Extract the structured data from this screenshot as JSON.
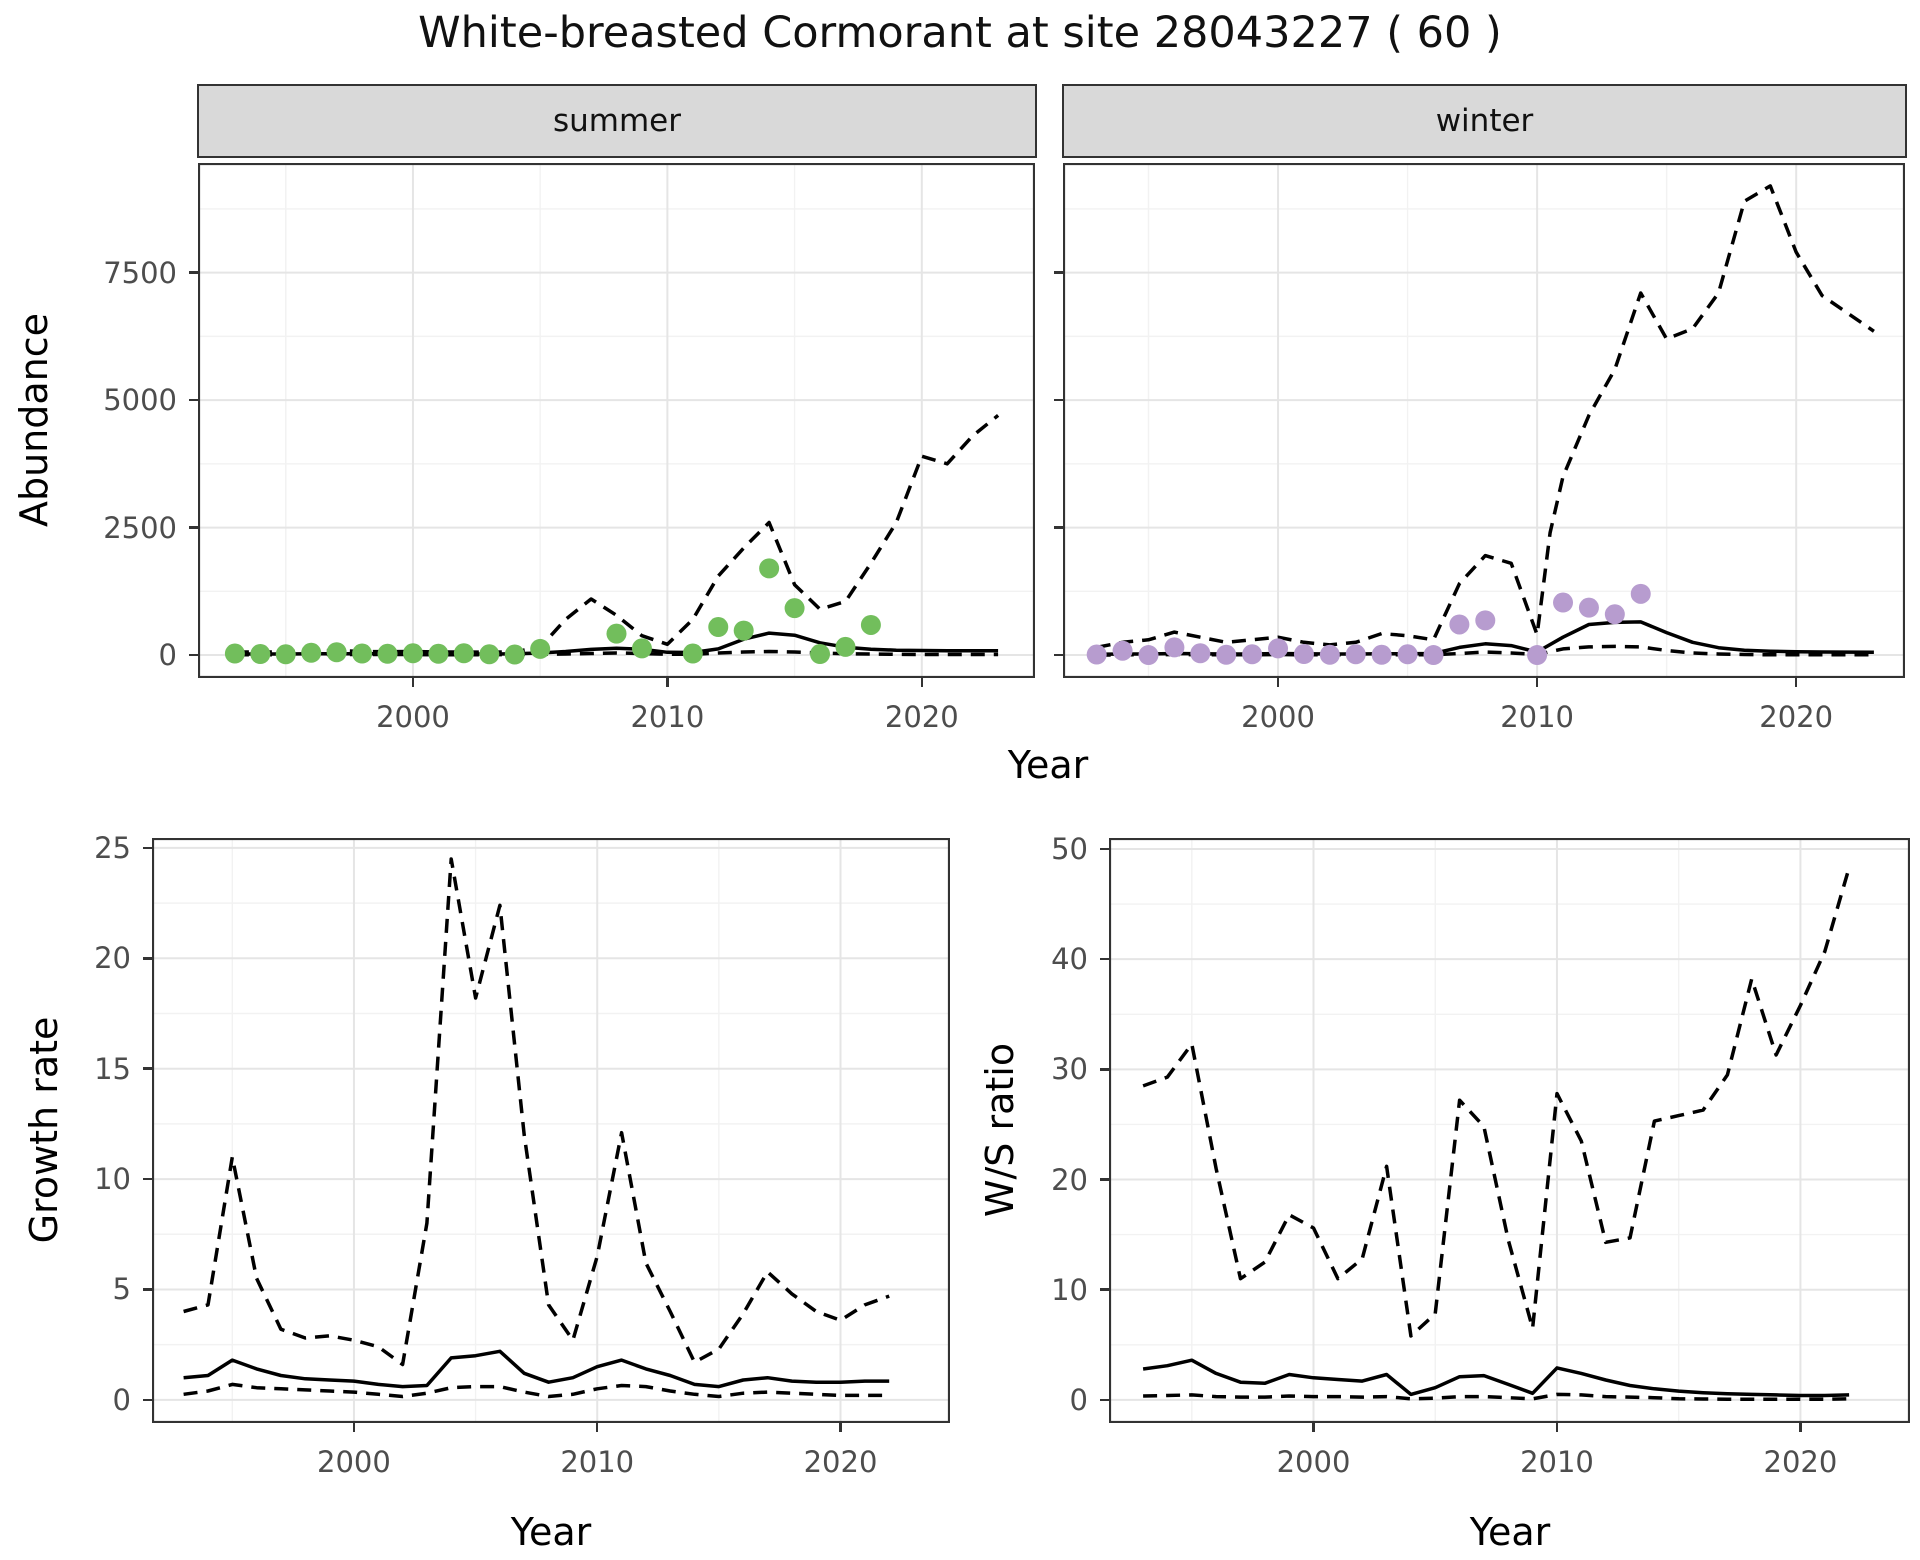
{
  "title": "White-breasted Cormorant at site 28043227 ( 60 )",
  "axis_titles": {
    "abundance": "Abundance",
    "year_top": "Year"
  },
  "colors": {
    "summer_point": "#72BE5C",
    "winter_point": "#B79CCF",
    "line": "#000000",
    "grid_major": "#E5E5E5",
    "grid_minor": "#F2F2F2",
    "panel_border": "#333333",
    "strip_bg": "#D9D9D9",
    "axis_text": "#4D4D4D",
    "background": "#FFFFFF"
  },
  "chart_data": [
    {
      "id": "abundance_summer",
      "type": "line",
      "facet": "summer",
      "xlabel": "Year",
      "ylabel": "Abundance",
      "xlim": [
        1991.55,
        2024.45
      ],
      "ylim": [
        -450,
        9650
      ],
      "x_major": [
        2000,
        2010,
        2020
      ],
      "x_minor": [
        1995,
        2005,
        2015
      ],
      "y_major": [
        0,
        2500,
        5000,
        7500
      ],
      "y_minor": [
        1250,
        3750,
        6250,
        8750
      ],
      "grid": true,
      "legend": "none",
      "series": [
        {
          "name": "upper_95ci",
          "style": "dashed",
          "x": [
            1993,
            1994,
            1995,
            1996,
            1997,
            1998,
            1999,
            2000,
            2001,
            2002,
            2003,
            2004,
            2005,
            2006,
            2007,
            2008,
            2009,
            2010,
            2011,
            2012,
            2013,
            2014,
            2015,
            2016,
            2017,
            2018,
            2019,
            2020,
            2021,
            2022,
            2023
          ],
          "y": [
            60,
            60,
            60,
            85,
            90,
            70,
            65,
            70,
            60,
            60,
            55,
            65,
            150,
            700,
            1100,
            780,
            380,
            210,
            700,
            1550,
            2100,
            2600,
            1380,
            900,
            1050,
            1800,
            2600,
            3900,
            3750,
            4300,
            4700
          ]
        },
        {
          "name": "median",
          "style": "solid",
          "x": [
            1993,
            1994,
            1995,
            1996,
            1997,
            1998,
            1999,
            2000,
            2001,
            2002,
            2003,
            2004,
            2005,
            2006,
            2007,
            2008,
            2009,
            2010,
            2011,
            2012,
            2013,
            2014,
            2015,
            2016,
            2017,
            2018,
            2019,
            2020,
            2021,
            2022,
            2023
          ],
          "y": [
            20,
            20,
            20,
            25,
            25,
            25,
            25,
            25,
            20,
            20,
            20,
            25,
            40,
            70,
            110,
            135,
            115,
            55,
            50,
            120,
            310,
            430,
            390,
            240,
            155,
            115,
            95,
            90,
            85,
            85,
            85
          ]
        },
        {
          "name": "lower_95ci",
          "style": "dashed",
          "x": [
            1993,
            1994,
            1995,
            1996,
            1997,
            1998,
            1999,
            2000,
            2001,
            2002,
            2003,
            2004,
            2005,
            2006,
            2007,
            2008,
            2009,
            2010,
            2011,
            2012,
            2013,
            2014,
            2015,
            2016,
            2017,
            2018,
            2019,
            2020,
            2021,
            2022,
            2023
          ],
          "y": [
            5,
            5,
            5,
            10,
            10,
            10,
            10,
            10,
            5,
            5,
            5,
            10,
            15,
            20,
            30,
            40,
            30,
            15,
            15,
            40,
            60,
            70,
            60,
            40,
            25,
            20,
            15,
            10,
            10,
            10,
            10
          ]
        },
        {
          "name": "observations",
          "style": "points",
          "color": "#72BE5C",
          "x": [
            1993,
            1994,
            1995,
            1996,
            1997,
            1998,
            1999,
            2000,
            2001,
            2002,
            2003,
            2004,
            2005,
            2008,
            2009,
            2011,
            2012,
            2013,
            2014,
            2015,
            2016,
            2017,
            2018
          ],
          "y": [
            30,
            20,
            15,
            45,
            55,
            30,
            25,
            35,
            25,
            35,
            15,
            10,
            120,
            420,
            130,
            30,
            550,
            480,
            1700,
            920,
            20,
            160,
            590
          ]
        }
      ]
    },
    {
      "id": "abundance_winter",
      "type": "line",
      "facet": "winter",
      "xlabel": "Year",
      "ylabel": "Abundance",
      "xlim": [
        1991.7,
        2024.2
      ],
      "ylim": [
        -450,
        9650
      ],
      "x_major": [
        2000,
        2010,
        2020
      ],
      "x_minor": [
        1995,
        2005,
        2015
      ],
      "y_major": [
        0,
        2500,
        5000,
        7500
      ],
      "y_minor": [
        1250,
        3750,
        6250,
        8750
      ],
      "grid": true,
      "legend": "none",
      "series": [
        {
          "name": "upper_95ci",
          "style": "dashed",
          "x": [
            1993,
            1994,
            1995,
            1996,
            1997,
            1998,
            1999,
            2000,
            2001,
            2002,
            2003,
            2004,
            2005,
            2006,
            2007,
            2008,
            2009,
            2010,
            2010.5,
            2011,
            2012,
            2013,
            2014,
            2015,
            2016,
            2017,
            2018,
            2019,
            2020,
            2021,
            2022,
            2023
          ],
          "y": [
            150,
            250,
            300,
            450,
            350,
            250,
            300,
            350,
            250,
            200,
            250,
            420,
            380,
            300,
            1400,
            1950,
            1800,
            400,
            2400,
            3500,
            4700,
            5600,
            7100,
            6200,
            6400,
            7100,
            8900,
            9200,
            7900,
            7050,
            6700,
            6350
          ]
        },
        {
          "name": "median",
          "style": "solid",
          "x": [
            1993,
            1994,
            1995,
            1996,
            1997,
            1998,
            1999,
            2000,
            2001,
            2002,
            2003,
            2004,
            2005,
            2006,
            2007,
            2008,
            2009,
            2010,
            2011,
            2012,
            2013,
            2014,
            2015,
            2016,
            2017,
            2018,
            2019,
            2020,
            2021,
            2022,
            2023
          ],
          "y": [
            15,
            20,
            20,
            30,
            25,
            20,
            20,
            30,
            25,
            20,
            20,
            25,
            25,
            30,
            150,
            220,
            185,
            60,
            350,
            600,
            640,
            650,
            440,
            250,
            145,
            95,
            75,
            65,
            60,
            58,
            55
          ]
        },
        {
          "name": "lower_95ci",
          "style": "dashed",
          "x": [
            1993,
            1994,
            1995,
            1996,
            1997,
            1998,
            1999,
            2000,
            2001,
            2002,
            2003,
            2004,
            2005,
            2006,
            2007,
            2008,
            2009,
            2010,
            2011,
            2012,
            2013,
            2014,
            2015,
            2016,
            2017,
            2018,
            2019,
            2020,
            2021,
            2022,
            2023
          ],
          "y": [
            0,
            5,
            5,
            10,
            5,
            5,
            5,
            10,
            5,
            5,
            5,
            5,
            5,
            5,
            30,
            60,
            40,
            10,
            120,
            160,
            170,
            160,
            90,
            40,
            20,
            10,
            5,
            5,
            5,
            5,
            5
          ]
        },
        {
          "name": "observations",
          "style": "points",
          "color": "#B79CCF",
          "x": [
            1993,
            1994,
            1995,
            1996,
            1997,
            1998,
            1999,
            2000,
            2001,
            2002,
            2003,
            2004,
            2005,
            2006,
            2007,
            2008,
            2010,
            2011,
            2012,
            2013,
            2014
          ],
          "y": [
            10,
            85,
            0,
            150,
            35,
            5,
            15,
            130,
            20,
            5,
            15,
            5,
            15,
            0,
            600,
            680,
            0,
            1030,
            930,
            800,
            1200
          ]
        }
      ]
    },
    {
      "id": "growth_rate",
      "type": "line",
      "facet": null,
      "xlabel": "Year",
      "ylabel": "Growth rate",
      "xlim": [
        1991.7,
        2024.5
      ],
      "ylim": [
        -1.05,
        25.45
      ],
      "x_major": [
        2000,
        2010,
        2020
      ],
      "x_minor": [
        1995,
        2005,
        2015
      ],
      "y_major": [
        0,
        5,
        10,
        15,
        20,
        25
      ],
      "y_minor": [
        2.5,
        7.5,
        12.5,
        17.5,
        22.5
      ],
      "grid": true,
      "legend": "none",
      "series": [
        {
          "name": "upper_95ci",
          "style": "dashed",
          "x": [
            1993,
            1994,
            1995,
            1996,
            1997,
            1998,
            1999,
            2000,
            2001,
            2002,
            2003,
            2004,
            2005,
            2006,
            2007,
            2008,
            2009,
            2010,
            2011,
            2012,
            2013,
            2014,
            2015,
            2016,
            2017,
            2018,
            2019,
            2020,
            2021,
            2022
          ],
          "y": [
            4.0,
            4.3,
            11.0,
            5.5,
            3.2,
            2.8,
            2.9,
            2.7,
            2.4,
            1.6,
            8.0,
            24.5,
            18.2,
            22.4,
            12.0,
            4.3,
            2.7,
            6.5,
            12.1,
            6.2,
            4.0,
            1.7,
            2.3,
            3.9,
            5.8,
            4.8,
            4.0,
            3.6,
            4.3,
            4.7
          ]
        },
        {
          "name": "median",
          "style": "solid",
          "x": [
            1993,
            1994,
            1995,
            1996,
            1997,
            1998,
            1999,
            2000,
            2001,
            2002,
            2003,
            2004,
            2005,
            2006,
            2007,
            2008,
            2009,
            2010,
            2011,
            2012,
            2013,
            2014,
            2015,
            2016,
            2017,
            2018,
            2019,
            2020,
            2021,
            2022
          ],
          "y": [
            1.0,
            1.1,
            1.8,
            1.4,
            1.1,
            0.95,
            0.9,
            0.85,
            0.7,
            0.6,
            0.65,
            1.9,
            2.0,
            2.2,
            1.2,
            0.8,
            1.0,
            1.5,
            1.8,
            1.4,
            1.1,
            0.7,
            0.6,
            0.9,
            1.0,
            0.85,
            0.8,
            0.8,
            0.85,
            0.85
          ]
        },
        {
          "name": "lower_95ci",
          "style": "dashed",
          "x": [
            1993,
            1994,
            1995,
            1996,
            1997,
            1998,
            1999,
            2000,
            2001,
            2002,
            2003,
            2004,
            2005,
            2006,
            2007,
            2008,
            2009,
            2010,
            2011,
            2012,
            2013,
            2014,
            2015,
            2016,
            2017,
            2018,
            2019,
            2020,
            2021,
            2022
          ],
          "y": [
            0.25,
            0.4,
            0.7,
            0.55,
            0.5,
            0.45,
            0.4,
            0.35,
            0.25,
            0.15,
            0.3,
            0.55,
            0.6,
            0.6,
            0.35,
            0.15,
            0.25,
            0.5,
            0.65,
            0.6,
            0.4,
            0.25,
            0.15,
            0.3,
            0.35,
            0.3,
            0.25,
            0.2,
            0.2,
            0.2
          ]
        }
      ]
    },
    {
      "id": "ws_ratio",
      "type": "line",
      "facet": null,
      "xlabel": "Year",
      "ylabel": "W/S ratio",
      "xlim": [
        1991.6,
        2024.5
      ],
      "ylim": [
        -2.1,
        51
      ],
      "x_major": [
        2000,
        2010,
        2020
      ],
      "x_minor": [
        1995,
        2005,
        2015
      ],
      "y_major": [
        0,
        10,
        20,
        30,
        40,
        50
      ],
      "y_minor": [
        5,
        15,
        25,
        35,
        45
      ],
      "grid": true,
      "legend": "none",
      "series": [
        {
          "name": "upper_95ci",
          "style": "dashed",
          "x": [
            1993,
            1994,
            1995,
            1996,
            1997,
            1998,
            1999,
            2000,
            2001,
            2002,
            2003,
            2004,
            2005,
            2006,
            2007,
            2008,
            2009,
            2010,
            2011,
            2012,
            2013,
            2014,
            2015,
            2016,
            2017,
            2018,
            2019,
            2020,
            2021,
            2022
          ],
          "y": [
            28.5,
            29.3,
            32.3,
            21.0,
            11.0,
            12.5,
            16.8,
            15.6,
            11.0,
            12.8,
            21.2,
            5.8,
            7.8,
            27.2,
            24.8,
            14.5,
            6.5,
            27.8,
            23.5,
            14.3,
            14.7,
            25.3,
            25.8,
            26.3,
            29.5,
            38.2,
            31.3,
            35.8,
            40.7,
            48.3
          ]
        },
        {
          "name": "median",
          "style": "solid",
          "x": [
            1993,
            1994,
            1995,
            1996,
            1997,
            1998,
            1999,
            2000,
            2001,
            2002,
            2003,
            2004,
            2005,
            2006,
            2007,
            2008,
            2009,
            2010,
            2011,
            2012,
            2013,
            2014,
            2015,
            2016,
            2017,
            2018,
            2019,
            2020,
            2021,
            2022
          ],
          "y": [
            2.8,
            3.1,
            3.6,
            2.4,
            1.6,
            1.5,
            2.3,
            2.0,
            1.85,
            1.7,
            2.3,
            0.5,
            1.1,
            2.1,
            2.2,
            1.4,
            0.6,
            2.9,
            2.4,
            1.8,
            1.3,
            1.0,
            0.8,
            0.65,
            0.55,
            0.5,
            0.45,
            0.4,
            0.4,
            0.45
          ]
        },
        {
          "name": "lower_95ci",
          "style": "dashed",
          "x": [
            1993,
            1994,
            1995,
            1996,
            1997,
            1998,
            1999,
            2000,
            2001,
            2002,
            2003,
            2004,
            2005,
            2006,
            2007,
            2008,
            2009,
            2010,
            2011,
            2012,
            2013,
            2014,
            2015,
            2016,
            2017,
            2018,
            2019,
            2020,
            2021,
            2022
          ],
          "y": [
            0.35,
            0.4,
            0.45,
            0.3,
            0.25,
            0.25,
            0.35,
            0.3,
            0.3,
            0.25,
            0.3,
            0.1,
            0.15,
            0.3,
            0.3,
            0.2,
            0.1,
            0.5,
            0.45,
            0.3,
            0.25,
            0.2,
            0.1,
            0.08,
            0.06,
            0.05,
            0.05,
            0.05,
            0.05,
            0.1
          ]
        }
      ]
    }
  ]
}
